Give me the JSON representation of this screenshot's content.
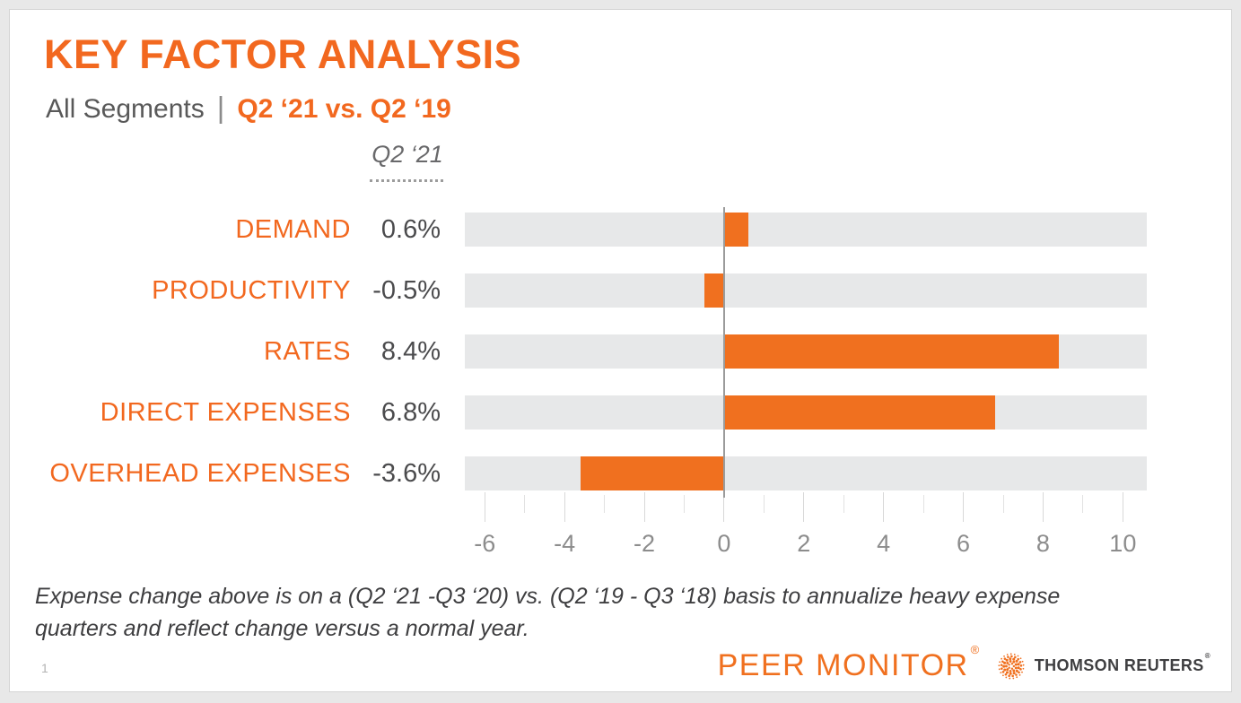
{
  "slide": {
    "title": "KEY FACTOR ANALYSIS",
    "subtitle_left": "All Segments",
    "subtitle_divider": "|",
    "subtitle_right": "Q2 ‘21 vs. Q2 ‘19",
    "footnote_line1": "Expense change above is on a (Q2 ‘21 -Q3 ‘20) vs. (Q2 ‘19 - Q3 ‘18) basis to annualize heavy expense",
    "footnote_line2": "quarters and reflect change versus a normal year.",
    "page_number": "1",
    "footer_brand": "PEER MONITOR",
    "footer_brand_reg": "®",
    "footer_logo_text": "THOMSON REUTERS",
    "footer_logo_reg": "®"
  },
  "chart_data": {
    "type": "bar",
    "orientation": "horizontal",
    "title": "KEY FACTOR ANALYSIS",
    "subtitle": "All Segments | Q2 ‘21 vs. Q2 ‘19",
    "value_column_header": "Q2 ‘21",
    "categories": [
      "DEMAND",
      "PRODUCTIVITY",
      "RATES",
      "DIRECT EXPENSES",
      "OVERHEAD EXPENSES"
    ],
    "values": [
      0.6,
      -0.5,
      8.4,
      6.8,
      -3.6
    ],
    "value_labels": [
      "0.6%",
      "-0.5%",
      "8.4%",
      "6.8%",
      "-3.6%"
    ],
    "unit": "%",
    "xlim": [
      -6.5,
      10.6
    ],
    "x_major_ticks": [
      -6,
      -4,
      -2,
      0,
      2,
      4,
      6,
      8,
      10
    ],
    "x_minor_tick_step": 1,
    "grid": false,
    "legend": false,
    "bar_color": "#F0701F",
    "track_color": "#E7E8E9",
    "zero_line_color": "#9B9B9B"
  },
  "colors": {
    "orange": "#F0701F",
    "title_orange": "#F2681F",
    "subtitle_gray": "#595959",
    "value_gray": "#4B4B4D",
    "tick_label_gray": "#8C8C8C",
    "footnote_gray": "#3E3E40",
    "tr_text_gray": "#3F3F41",
    "page_background": "#E8E8E8"
  }
}
